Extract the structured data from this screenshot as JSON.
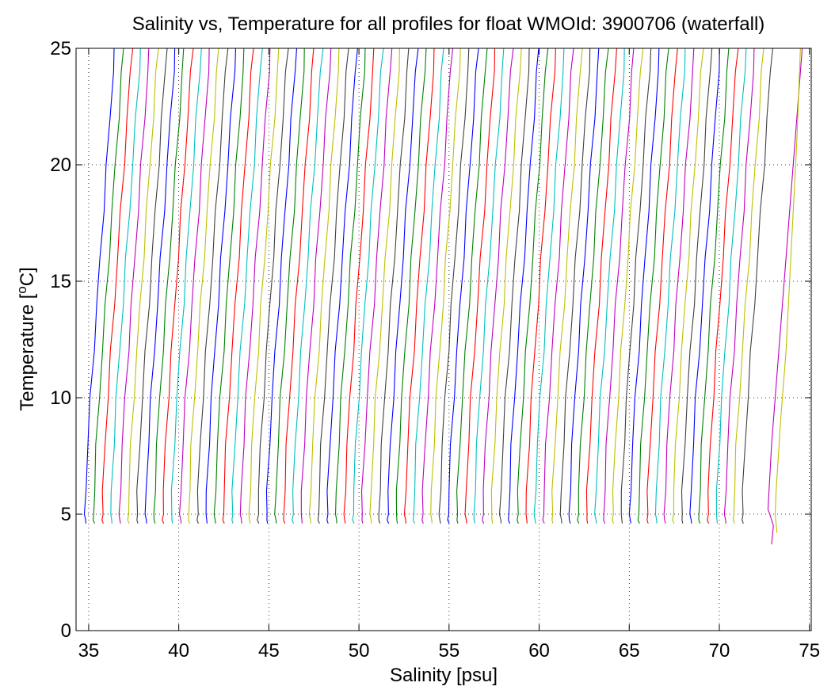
{
  "chart_data": {
    "type": "line",
    "title": "Salinity vs, Temperature for all profiles for float WMOId: 3900706 (waterfall)",
    "xlabel": "Salinity [psu]",
    "ylabel_main": "Temperature [",
    "ylabel_sup": "o",
    "ylabel_tail": "C]",
    "xlim": [
      34.3,
      75.1
    ],
    "ylim": [
      0,
      25
    ],
    "x_ticks": [
      35,
      40,
      45,
      50,
      55,
      60,
      65,
      70,
      75
    ],
    "y_ticks": [
      0,
      5,
      10,
      15,
      20,
      25
    ],
    "x_tick_labels": [
      "35",
      "40",
      "45",
      "50",
      "55",
      "60",
      "65",
      "70",
      "75"
    ],
    "y_tick_labels": [
      "0",
      "5",
      "10",
      "15",
      "20",
      "25"
    ],
    "grid": true,
    "legend": "none",
    "colors": [
      "#0000ff",
      "#008000",
      "#ff0000",
      "#00bfbf",
      "#bf00bf",
      "#bfbf00",
      "#404040"
    ],
    "profile_count": 77,
    "first_profile_bottom_salinity": 34.8,
    "waterfall_offset_psu": 0.48,
    "profile_shape": {
      "temperature": [
        4.6,
        4.75,
        5.0,
        6.0,
        8.0,
        10.0,
        12.0,
        14.0,
        16.0,
        18.0,
        20.0,
        22.0,
        24.0,
        25.0
      ],
      "salinity_offset": [
        0.05,
        0.0,
        0.0,
        0.03,
        0.15,
        0.3,
        0.48,
        0.66,
        0.84,
        1.02,
        1.2,
        1.38,
        1.56,
        1.65
      ]
    },
    "last_profiles": [
      {
        "temperature": [
          3.7,
          4.5,
          5.0,
          5.2,
          8.0,
          10.0,
          12.0,
          15.0,
          18.0,
          21.0,
          25.0
        ],
        "salinity": [
          72.9,
          73.0,
          72.8,
          72.7,
          72.9,
          73.1,
          73.3,
          73.6,
          73.9,
          74.2,
          74.6
        ]
      },
      {
        "temperature": [
          4.2,
          5.0,
          6.0,
          9.0,
          12.0,
          15.0,
          18.0,
          21.0,
          25.0
        ],
        "salinity": [
          73.2,
          73.1,
          73.15,
          73.4,
          73.7,
          73.9,
          74.1,
          74.3,
          74.5
        ]
      }
    ]
  }
}
